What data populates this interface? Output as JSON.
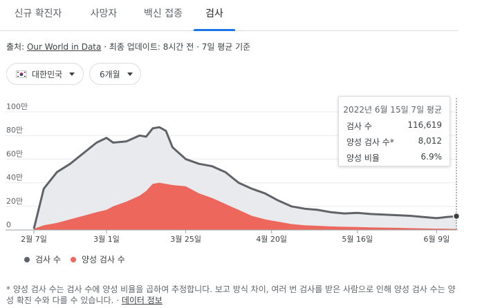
{
  "tabs": [
    {
      "label": "신규 확진자",
      "active": false
    },
    {
      "label": "사망자",
      "active": false
    },
    {
      "label": "백신 접종",
      "active": false
    },
    {
      "label": "검사",
      "active": true
    }
  ],
  "source": {
    "prefix": "출처:",
    "link": "Our World in Data",
    "suffix": "· 최종 업데이트: 8시간 전 · 7일 평균 기준"
  },
  "filters": {
    "country": "대한민국",
    "period": "6개월"
  },
  "tooltip": {
    "date": "2022년 6월 15일 7일 평균",
    "rows": [
      {
        "label": "검사 수",
        "value": "116,619"
      },
      {
        "label": "양성 검사 수*",
        "value": "8,012"
      },
      {
        "label": "양성 비율",
        "value": "6.9%"
      }
    ]
  },
  "legend": [
    {
      "label": "검사 수",
      "color": "#5f6368"
    },
    {
      "label": "양성 검사 수",
      "color": "#ee675c"
    }
  ],
  "footnote": {
    "text": "* 양성 검사 수는 검사 수에 양성 비율을 곱하여 추정합니다. 보고 방식 차이, 여러 번 검사를 받은 사람으로 인해 양성 검사 수는 양성 확진 수와 다를 수 있습니다.",
    "sep": " · ",
    "link": "데이터 정보"
  },
  "chart_data": {
    "type": "area",
    "x_tick_labels": [
      "2월 7일",
      "3월 1일",
      "3월 25일",
      "4월 20일",
      "5월 16일",
      "6월 9일"
    ],
    "y_tick_labels": [
      "0",
      "20만",
      "40만",
      "60만",
      "80만",
      "100만"
    ],
    "ylim": [
      0,
      1000000
    ],
    "grid": true,
    "legend_position": "bottom-left",
    "x": [
      "2022-02-07",
      "2022-02-10",
      "2022-02-14",
      "2022-02-18",
      "2022-02-22",
      "2022-02-26",
      "2022-03-01",
      "2022-03-03",
      "2022-03-07",
      "2022-03-11",
      "2022-03-13",
      "2022-03-15",
      "2022-03-17",
      "2022-03-19",
      "2022-03-21",
      "2022-03-25",
      "2022-03-29",
      "2022-04-02",
      "2022-04-06",
      "2022-04-10",
      "2022-04-14",
      "2022-04-18",
      "2022-04-22",
      "2022-04-26",
      "2022-04-30",
      "2022-05-04",
      "2022-05-08",
      "2022-05-12",
      "2022-05-16",
      "2022-05-20",
      "2022-05-24",
      "2022-05-28",
      "2022-06-01",
      "2022-06-05",
      "2022-06-09",
      "2022-06-12",
      "2022-06-15"
    ],
    "series": [
      {
        "name": "검사 수",
        "color": "#5f6368",
        "values": [
          10000,
          350000,
          490000,
          560000,
          650000,
          740000,
          780000,
          740000,
          750000,
          800000,
          790000,
          860000,
          870000,
          840000,
          700000,
          600000,
          560000,
          540000,
          490000,
          400000,
          350000,
          310000,
          250000,
          200000,
          180000,
          170000,
          150000,
          140000,
          145000,
          135000,
          130000,
          125000,
          120000,
          110000,
          100000,
          110000,
          116619
        ]
      },
      {
        "name": "양성 검사 수",
        "color": "#ee675c",
        "values": [
          10000,
          40000,
          60000,
          90000,
          120000,
          150000,
          170000,
          200000,
          240000,
          290000,
          330000,
          390000,
          400000,
          390000,
          380000,
          370000,
          310000,
          270000,
          220000,
          170000,
          120000,
          90000,
          70000,
          50000,
          40000,
          35000,
          30000,
          27000,
          25000,
          22000,
          20000,
          18000,
          15000,
          13000,
          11000,
          10000,
          8012
        ]
      }
    ]
  }
}
